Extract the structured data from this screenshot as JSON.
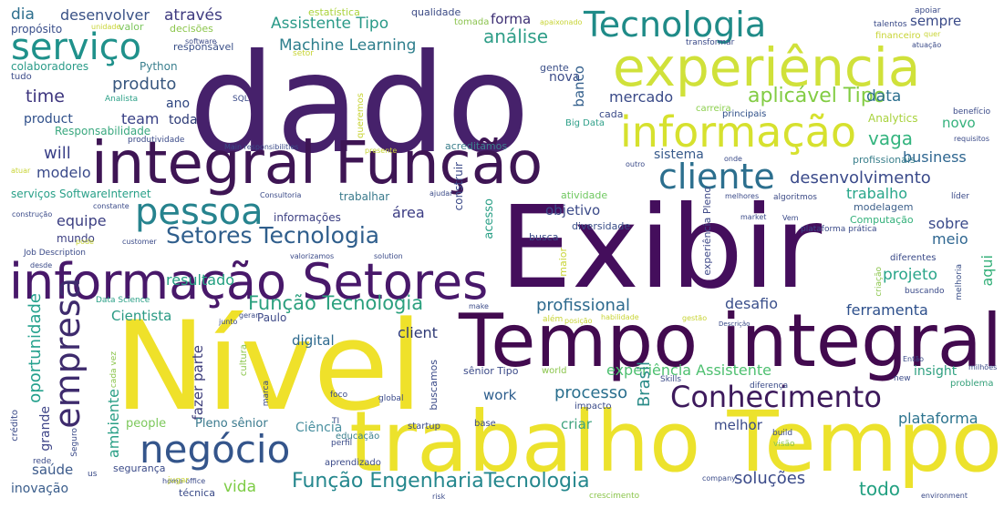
{
  "words": [
    {
      "text": "dado",
      "color": "#46216b"
    },
    {
      "text": "Exibir",
      "color": "#440e5c"
    },
    {
      "text": "Nível",
      "color": "#efe12a"
    },
    {
      "text": "trabalho Tempo",
      "color": "#ece22c"
    },
    {
      "text": "Tempo integral",
      "color": "#420a4f"
    },
    {
      "text": "integral Função",
      "color": "#3e1554"
    },
    {
      "text": "informação Setores",
      "color": "#48186a"
    },
    {
      "text": "experiência",
      "color": "#d0e13a"
    },
    {
      "text": "informação",
      "color": "#d6e12e"
    },
    {
      "text": "Tecnologia",
      "color": "#1f8b88"
    },
    {
      "text": "serviço",
      "color": "#1f918b"
    },
    {
      "text": "cliente",
      "color": "#2c6f8e"
    },
    {
      "text": "pessoa",
      "color": "#26838e"
    },
    {
      "text": "negócio",
      "color": "#34558b"
    },
    {
      "text": "Conhecimento",
      "color": "#3d1a5c"
    },
    {
      "text": "empresa",
      "color": "#3e2b6d"
    },
    {
      "text": "Setores Tecnologia",
      "color": "#2f5e8c"
    },
    {
      "text": "Função EngenhariaTecnologia",
      "color": "#24878d"
    },
    {
      "text": "aplicável Tipo",
      "color": "#82cc43"
    },
    {
      "text": "Função Tecnologia",
      "color": "#2ba07e"
    },
    {
      "text": "desenvolvimento",
      "color": "#3a4a8a"
    },
    {
      "text": "vaga",
      "color": "#33b47e"
    },
    {
      "text": "análise",
      "color": "#2f9e88"
    },
    {
      "text": "Assistente Tipo",
      "color": "#2a9a88"
    },
    {
      "text": "Machine Learning",
      "color": "#2d7e8c"
    },
    {
      "text": "experiência Assistente",
      "color": "#4ec070"
    },
    {
      "text": "processo",
      "color": "#2a6f8e"
    },
    {
      "text": "plataforma",
      "color": "#2b738e"
    },
    {
      "text": "produto",
      "color": "#38577f"
    },
    {
      "text": "time",
      "color": "#3d357e"
    },
    {
      "text": "modelo",
      "color": "#3a4a8a"
    },
    {
      "text": "equipe",
      "color": "#3c3f82"
    },
    {
      "text": "team",
      "color": "#373f85"
    },
    {
      "text": "will",
      "color": "#3a4088"
    },
    {
      "text": "resultado",
      "color": "#23a081"
    },
    {
      "text": "mercado",
      "color": "#3a4a88"
    },
    {
      "text": "área",
      "color": "#3c3d84"
    },
    {
      "text": "ferramenta",
      "color": "#2d4f8b"
    },
    {
      "text": "desafio",
      "color": "#3a4f8b"
    },
    {
      "text": "profissional",
      "color": "#2d6a8e"
    },
    {
      "text": "Brasil",
      "color": "#2a8b88"
    },
    {
      "text": "soluções",
      "color": "#3b4b8a"
    },
    {
      "text": "todo",
      "color": "#22a081"
    },
    {
      "text": "vida",
      "color": "#7dcc45"
    },
    {
      "text": "projeto",
      "color": "#29a589"
    },
    {
      "text": "trabalho",
      "color": "#27a68a"
    },
    {
      "text": "business",
      "color": "#2e6690"
    },
    {
      "text": "sobre",
      "color": "#3a4a8a"
    },
    {
      "text": "meio",
      "color": "#2e6690"
    },
    {
      "text": "aqui",
      "color": "#35b07a"
    },
    {
      "text": "data",
      "color": "#2c6f8e"
    },
    {
      "text": "sempre",
      "color": "#3a4a88"
    },
    {
      "text": "novo",
      "color": "#34b17c"
    },
    {
      "text": "forma",
      "color": "#3d2f74"
    },
    {
      "text": "nova",
      "color": "#3c4d89"
    },
    {
      "text": "banco",
      "color": "#35608d"
    },
    {
      "text": "desenvolver",
      "color": "#3a5286"
    },
    {
      "text": "através",
      "color": "#3f3b80"
    },
    {
      "text": "dia",
      "color": "#2d6f8e"
    },
    {
      "text": "digital",
      "color": "#2e6a8e"
    },
    {
      "text": "client",
      "color": "#2f3a76"
    },
    {
      "text": "objetivo",
      "color": "#3b4a88"
    },
    {
      "text": "criar",
      "color": "#41a47e"
    },
    {
      "text": "melhor",
      "color": "#3a4a88"
    },
    {
      "text": "work",
      "color": "#2c5d8d"
    },
    {
      "text": "Cientista",
      "color": "#2a9a84"
    },
    {
      "text": "sistema",
      "color": "#375a8b"
    },
    {
      "text": "insight",
      "color": "#2fa080"
    },
    {
      "text": "oportunidade",
      "color": "#25a18d"
    },
    {
      "text": "ambiente",
      "color": "#2a9f86"
    },
    {
      "text": "grande",
      "color": "#3f4588"
    },
    {
      "text": "fazer parte",
      "color": "#3c3c7a"
    },
    {
      "text": "saúde",
      "color": "#3c5a8b"
    },
    {
      "text": "inovação",
      "color": "#3a5d8b"
    },
    {
      "text": "Ciência",
      "color": "#4a90a0"
    },
    {
      "text": "people",
      "color": "#7cc85b"
    },
    {
      "text": "Pleno sênior",
      "color": "#3a7a8e"
    },
    {
      "text": "ano",
      "color": "#2f4680"
    },
    {
      "text": "toda",
      "color": "#2c3a76"
    },
    {
      "text": "product",
      "color": "#2f4f8a"
    },
    {
      "text": "Responsabilidade",
      "color": "#3aa87f"
    },
    {
      "text": "Python",
      "color": "#3a7f8e"
    },
    {
      "text": "colaboradores",
      "color": "#2a9b88"
    },
    {
      "text": "propósito",
      "color": "#3a4f8b"
    },
    {
      "text": "valor",
      "color": "#7cc65d"
    },
    {
      "text": "decisões",
      "color": "#8bc54b"
    },
    {
      "text": "responsável",
      "color": "#3a4f88"
    },
    {
      "text": "estatística",
      "color": "#aad33c"
    },
    {
      "text": "qualidade",
      "color": "#3b4a85"
    },
    {
      "text": "tomada",
      "color": "#8bc34e"
    },
    {
      "text": "acreditamos",
      "color": "#3c7f8c"
    },
    {
      "text": "cada",
      "color": "#3a4a88"
    },
    {
      "text": "gente",
      "color": "#3b4f88"
    },
    {
      "text": "Analytics",
      "color": "#a8d23c"
    },
    {
      "text": "profissionais",
      "color": "#3a7f8c"
    },
    {
      "text": "Big Data",
      "color": "#2d9f88"
    },
    {
      "text": "principais",
      "color": "#2f4f88"
    },
    {
      "text": "carreira",
      "color": "#8bcf4c"
    },
    {
      "text": "modelagem",
      "color": "#3c5f8a"
    },
    {
      "text": "Computação",
      "color": "#33b07a"
    },
    {
      "text": "informações",
      "color": "#3c3f82"
    },
    {
      "text": "construir",
      "color": "#3b4a88"
    },
    {
      "text": "acesso",
      "color": "#2a9f86"
    },
    {
      "text": "busca",
      "color": "#3a4a88"
    },
    {
      "text": "maior",
      "color": "#c8d435"
    },
    {
      "text": "diversidade",
      "color": "#3a4f88"
    },
    {
      "text": "atividade",
      "color": "#6fc860"
    },
    {
      "text": "experiência Pleno",
      "color": "#3f4a88"
    },
    {
      "text": "algoritmos",
      "color": "#3c4a85"
    },
    {
      "text": "Paulo",
      "color": "#3f4a88"
    },
    {
      "text": "mundo",
      "color": "#3c3f82"
    },
    {
      "text": "trabalhar",
      "color": "#3a7a8c"
    },
    {
      "text": "serviços SoftwareInternet",
      "color": "#29a088"
    },
    {
      "text": "criação",
      "color": "#8bc54c"
    },
    {
      "text": "buscando",
      "color": "#3a4a88"
    },
    {
      "text": "melhoria",
      "color": "#3a4f88"
    },
    {
      "text": "diferentes",
      "color": "#3a4a88"
    },
    {
      "text": "problema",
      "color": "#35a07a"
    },
    {
      "text": "plataforma prática",
      "color": "#3a4a88"
    },
    {
      "text": "global",
      "color": "#3a4a88"
    },
    {
      "text": "impacto",
      "color": "#3a4a88"
    },
    {
      "text": "sênior Tipo",
      "color": "#3b4a88"
    },
    {
      "text": "buscamos",
      "color": "#3a4a88"
    },
    {
      "text": "segurança",
      "color": "#3a4a88"
    },
    {
      "text": "técnica",
      "color": "#3a4a88"
    },
    {
      "text": "educação",
      "color": "#3a7f8c"
    },
    {
      "text": "aprendizado",
      "color": "#3b4a88"
    },
    {
      "text": "cultura",
      "color": "#8bc54c"
    },
    {
      "text": "startup",
      "color": "#3a4a88"
    },
    {
      "text": "base",
      "color": "#3a4a88"
    },
    {
      "text": "world",
      "color": "#8bc54c"
    },
    {
      "text": "crescimento",
      "color": "#8bc54c"
    },
    {
      "text": "home office",
      "color": "#3a4a88"
    },
    {
      "text": "jugar",
      "color": "#c8d435"
    },
    {
      "text": "crédito",
      "color": "#3a4a88"
    },
    {
      "text": "rede",
      "color": "#3a4a88"
    },
    {
      "text": "us",
      "color": "#3a4a88"
    },
    {
      "text": "Seguro",
      "color": "#3a4a88"
    },
    {
      "text": "perfil",
      "color": "#3a4a88"
    },
    {
      "text": "visão",
      "color": "#8bc54c"
    },
    {
      "text": "build",
      "color": "#3a4a88"
    },
    {
      "text": "company",
      "color": "#3a4a88"
    },
    {
      "text": "risk",
      "color": "#3a4a88"
    },
    {
      "text": "environment",
      "color": "#3a4a88"
    },
    {
      "text": "new",
      "color": "#3a4a88"
    },
    {
      "text": "diferença",
      "color": "#3a4a88"
    },
    {
      "text": "Skills",
      "color": "#3a4a88"
    },
    {
      "text": "milhões",
      "color": "#3a4a88"
    },
    {
      "text": "Então",
      "color": "#3a4a88"
    },
    {
      "text": "Descrição",
      "color": "#3a4a88"
    },
    {
      "text": "gestão",
      "color": "#c8d435"
    },
    {
      "text": "habilidade",
      "color": "#c8d435"
    },
    {
      "text": "posição",
      "color": "#c8d435"
    },
    {
      "text": "além",
      "color": "#c8d435"
    },
    {
      "text": "make",
      "color": "#3a4a88"
    },
    {
      "text": "Data Science",
      "color": "#2a9f86"
    },
    {
      "text": "junto",
      "color": "#3a4a88"
    },
    {
      "text": "gerar",
      "color": "#3a4a88"
    },
    {
      "text": "cada vez",
      "color": "#8bc54c"
    },
    {
      "text": "marca",
      "color": "#3a4a88"
    },
    {
      "text": "TI",
      "color": "#3a4a88"
    },
    {
      "text": "foco",
      "color": "#3a4a88"
    },
    {
      "text": "solution",
      "color": "#3a4a88"
    },
    {
      "text": "valorizamos",
      "color": "#3a4a88"
    },
    {
      "text": "customer",
      "color": "#3a4a88"
    },
    {
      "text": "pode",
      "color": "#c8d435"
    },
    {
      "text": "Job Description",
      "color": "#3a4a88"
    },
    {
      "text": "desde",
      "color": "#3a4a88"
    },
    {
      "text": "construção",
      "color": "#3a4a88"
    },
    {
      "text": "constante",
      "color": "#3a4a88"
    },
    {
      "text": "atuar",
      "color": "#c8d435"
    },
    {
      "text": "Consultoria",
      "color": "#3a4a88"
    },
    {
      "text": "ajudar",
      "color": "#3a4a88"
    },
    {
      "text": "outro",
      "color": "#3a4a88"
    },
    {
      "text": "onde",
      "color": "#3a4a88"
    },
    {
      "text": "market",
      "color": "#3a4a88"
    },
    {
      "text": "Vem",
      "color": "#3a4a88"
    },
    {
      "text": "melhores",
      "color": "#3a4a88"
    },
    {
      "text": "líder",
      "color": "#3a4a88"
    },
    {
      "text": "requisitos",
      "color": "#3a4a88"
    },
    {
      "text": "benefício",
      "color": "#3a4a88"
    },
    {
      "text": "financeiro",
      "color": "#c8d435"
    },
    {
      "text": "atuação",
      "color": "#3a4a88"
    },
    {
      "text": "transformar",
      "color": "#3a4a88"
    },
    {
      "text": "talentos",
      "color": "#3a4a88"
    },
    {
      "text": "quer",
      "color": "#c8d435"
    },
    {
      "text": "apoiar",
      "color": "#3a4a88"
    },
    {
      "text": "apaixonado",
      "color": "#c8d435"
    },
    {
      "text": "setor",
      "color": "#c8d435"
    },
    {
      "text": "software",
      "color": "#3a4a88"
    },
    {
      "text": "unidade",
      "color": "#c8d435"
    },
    {
      "text": "tudo",
      "color": "#3a4a88"
    },
    {
      "text": "Analista",
      "color": "#2a9f86"
    },
    {
      "text": "SQL",
      "color": "#3a4a88"
    },
    {
      "text": "queremos",
      "color": "#c8d435"
    },
    {
      "text": "presente",
      "color": "#c8d435"
    },
    {
      "text": "Main responsibilities",
      "color": "#3a4a88"
    },
    {
      "text": "produtividade",
      "color": "#3a4a88"
    }
  ]
}
